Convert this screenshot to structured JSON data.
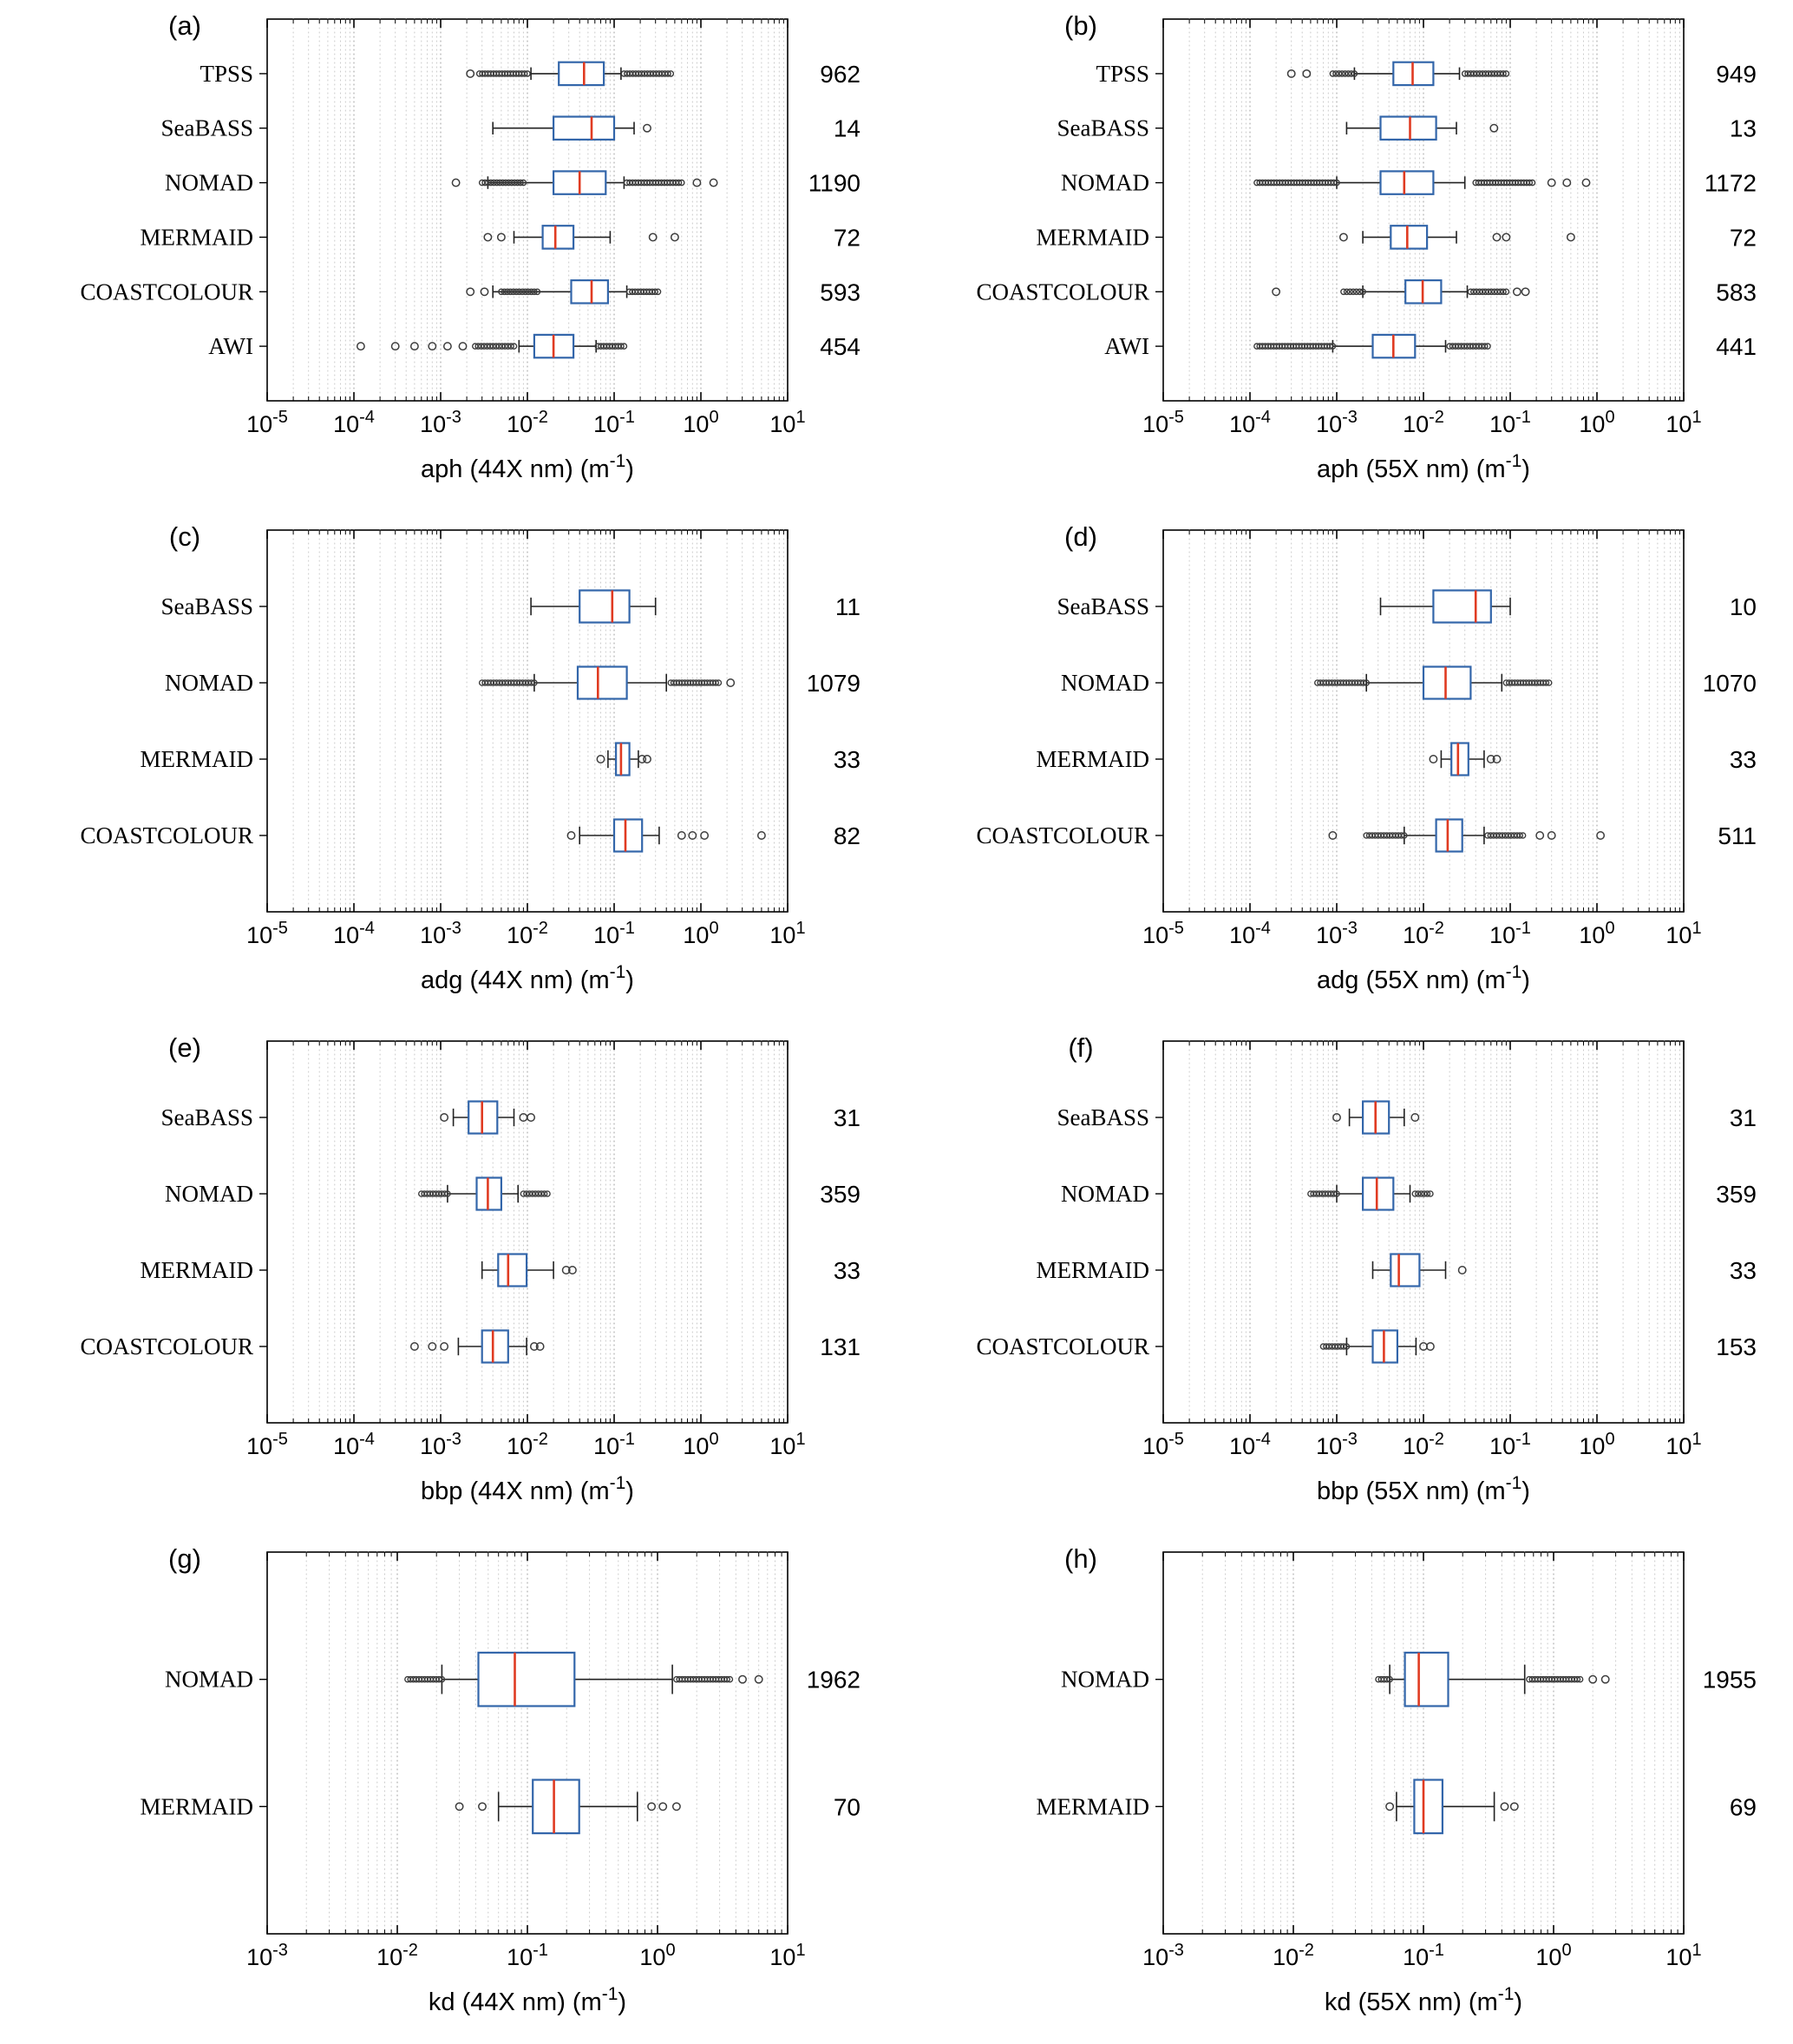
{
  "figure": {
    "grid": "4x2",
    "background": "#ffffff",
    "colors": {
      "box_stroke": "#3366aa",
      "median": "#e03b22",
      "whisker": "#222222",
      "outlier": "#3d3d3d",
      "grid_minor": "#c9c9c9",
      "grid_major": "#9b9b9b",
      "axis": "#000000",
      "text": "#000000"
    }
  },
  "chart_data": [
    {
      "panel": "(a)",
      "type": "boxplot-horizontal",
      "x_scale": "log10",
      "x_min_exp": -5,
      "x_max_exp": 1,
      "xlabel": [
        "aph (44X nm) (m",
        "-1",
        ")"
      ],
      "rows": [
        {
          "label": "TPSS",
          "count": "962",
          "whisker_lo": 0.011,
          "q1": 0.023,
          "median": 0.045,
          "q3": 0.076,
          "whisker_hi": 0.12,
          "dense_outliers": [
            [
              0.0028,
              0.01
            ],
            [
              0.13,
              0.45
            ]
          ],
          "outliers": [
            0.0022
          ]
        },
        {
          "label": "SeaBASS",
          "count": "14",
          "whisker_lo": 0.004,
          "q1": 0.02,
          "median": 0.055,
          "q3": 0.1,
          "whisker_hi": 0.17,
          "dense_outliers": [],
          "outliers": [
            0.24
          ]
        },
        {
          "label": "NOMAD",
          "count": "1190",
          "whisker_lo": 0.0035,
          "q1": 0.02,
          "median": 0.04,
          "q3": 0.08,
          "whisker_hi": 0.13,
          "dense_outliers": [
            [
              0.003,
              0.009
            ],
            [
              0.14,
              0.6
            ]
          ],
          "outliers": [
            0.0015,
            0.9,
            1.4
          ]
        },
        {
          "label": "MERMAID",
          "count": "72",
          "whisker_lo": 0.007,
          "q1": 0.015,
          "median": 0.021,
          "q3": 0.034,
          "whisker_hi": 0.09,
          "dense_outliers": [],
          "outliers": [
            0.0035,
            0.005,
            0.28,
            0.5
          ]
        },
        {
          "label": "COASTCOLOUR",
          "count": "593",
          "whisker_lo": 0.004,
          "q1": 0.032,
          "median": 0.055,
          "q3": 0.085,
          "whisker_hi": 0.14,
          "dense_outliers": [
            [
              0.005,
              0.013
            ],
            [
              0.15,
              0.32
            ]
          ],
          "outliers": [
            0.0022,
            0.0032
          ]
        },
        {
          "label": "AWI",
          "count": "454",
          "whisker_lo": 0.008,
          "q1": 0.012,
          "median": 0.02,
          "q3": 0.034,
          "whisker_hi": 0.062,
          "dense_outliers": [
            [
              0.0025,
              0.007
            ],
            [
              0.065,
              0.13
            ]
          ],
          "outliers": [
            0.00012,
            0.0003,
            0.0005,
            0.0008,
            0.0012,
            0.0018
          ]
        }
      ]
    },
    {
      "panel": "(b)",
      "type": "boxplot-horizontal",
      "x_scale": "log10",
      "x_min_exp": -5,
      "x_max_exp": 1,
      "xlabel": [
        "aph (55X nm) (m",
        "-1",
        ")"
      ],
      "rows": [
        {
          "label": "TPSS",
          "count": "949",
          "whisker_lo": 0.0016,
          "q1": 0.0045,
          "median": 0.0075,
          "q3": 0.013,
          "whisker_hi": 0.026,
          "dense_outliers": [
            [
              0.0009,
              0.0016
            ],
            [
              0.03,
              0.09
            ]
          ],
          "outliers": [
            0.0003,
            0.00045
          ]
        },
        {
          "label": "SeaBASS",
          "count": "13",
          "whisker_lo": 0.0013,
          "q1": 0.0032,
          "median": 0.007,
          "q3": 0.014,
          "whisker_hi": 0.024,
          "dense_outliers": [],
          "outliers": [
            0.065
          ]
        },
        {
          "label": "NOMAD",
          "count": "1172",
          "whisker_lo": 0.001,
          "q1": 0.0032,
          "median": 0.006,
          "q3": 0.013,
          "whisker_hi": 0.03,
          "dense_outliers": [
            [
              0.00012,
              0.001
            ],
            [
              0.04,
              0.18
            ]
          ],
          "outliers": [
            0.3,
            0.45,
            0.75
          ]
        },
        {
          "label": "MERMAID",
          "count": "72",
          "whisker_lo": 0.002,
          "q1": 0.0042,
          "median": 0.0065,
          "q3": 0.011,
          "whisker_hi": 0.024,
          "dense_outliers": [],
          "outliers": [
            0.0012,
            0.07,
            0.09,
            0.5
          ]
        },
        {
          "label": "COASTCOLOUR",
          "count": "583",
          "whisker_lo": 0.002,
          "q1": 0.0062,
          "median": 0.0098,
          "q3": 0.016,
          "whisker_hi": 0.032,
          "dense_outliers": [
            [
              0.0012,
              0.002
            ],
            [
              0.035,
              0.09
            ]
          ],
          "outliers": [
            0.0002,
            0.12,
            0.15
          ]
        },
        {
          "label": "AWI",
          "count": "441",
          "whisker_lo": 0.0009,
          "q1": 0.0026,
          "median": 0.0045,
          "q3": 0.008,
          "whisker_hi": 0.018,
          "dense_outliers": [
            [
              0.00012,
              0.0009
            ],
            [
              0.02,
              0.055
            ]
          ],
          "outliers": []
        }
      ]
    },
    {
      "panel": "(c)",
      "type": "boxplot-horizontal",
      "x_scale": "log10",
      "x_min_exp": -5,
      "x_max_exp": 1,
      "xlabel": [
        "adg (44X nm) (m",
        "-1",
        ")"
      ],
      "rows": [
        {
          "label": "SeaBASS",
          "count": "11",
          "whisker_lo": 0.011,
          "q1": 0.04,
          "median": 0.095,
          "q3": 0.15,
          "whisker_hi": 0.3,
          "dense_outliers": [],
          "outliers": []
        },
        {
          "label": "NOMAD",
          "count": "1079",
          "whisker_lo": 0.012,
          "q1": 0.038,
          "median": 0.065,
          "q3": 0.14,
          "whisker_hi": 0.4,
          "dense_outliers": [
            [
              0.003,
              0.012
            ],
            [
              0.45,
              1.6
            ]
          ],
          "outliers": [
            2.2
          ]
        },
        {
          "label": "MERMAID",
          "count": "33",
          "whisker_lo": 0.085,
          "q1": 0.105,
          "median": 0.12,
          "q3": 0.15,
          "whisker_hi": 0.19,
          "dense_outliers": [],
          "outliers": [
            0.07,
            0.21,
            0.24
          ]
        },
        {
          "label": "COASTCOLOUR",
          "count": "82",
          "whisker_lo": 0.04,
          "q1": 0.1,
          "median": 0.135,
          "q3": 0.21,
          "whisker_hi": 0.33,
          "dense_outliers": [],
          "outliers": [
            0.032,
            0.6,
            0.8,
            1.1,
            5.0
          ]
        }
      ]
    },
    {
      "panel": "(d)",
      "type": "boxplot-horizontal",
      "x_scale": "log10",
      "x_min_exp": -5,
      "x_max_exp": 1,
      "xlabel": [
        "adg (55X nm) (m",
        "-1",
        ")"
      ],
      "rows": [
        {
          "label": "SeaBASS",
          "count": "10",
          "whisker_lo": 0.0032,
          "q1": 0.013,
          "median": 0.04,
          "q3": 0.06,
          "whisker_hi": 0.1,
          "dense_outliers": [],
          "outliers": []
        },
        {
          "label": "NOMAD",
          "count": "1070",
          "whisker_lo": 0.0022,
          "q1": 0.01,
          "median": 0.018,
          "q3": 0.035,
          "whisker_hi": 0.08,
          "dense_outliers": [
            [
              0.0006,
              0.0022
            ],
            [
              0.09,
              0.28
            ]
          ],
          "outliers": []
        },
        {
          "label": "MERMAID",
          "count": "33",
          "whisker_lo": 0.016,
          "q1": 0.021,
          "median": 0.025,
          "q3": 0.033,
          "whisker_hi": 0.05,
          "dense_outliers": [],
          "outliers": [
            0.013,
            0.06,
            0.07
          ]
        },
        {
          "label": "COASTCOLOUR",
          "count": "511",
          "whisker_lo": 0.006,
          "q1": 0.014,
          "median": 0.019,
          "q3": 0.028,
          "whisker_hi": 0.05,
          "dense_outliers": [
            [
              0.0022,
              0.006
            ],
            [
              0.055,
              0.14
            ]
          ],
          "outliers": [
            0.0009,
            0.22,
            0.3,
            1.1
          ]
        }
      ]
    },
    {
      "panel": "(e)",
      "type": "boxplot-horizontal",
      "x_scale": "log10",
      "x_min_exp": -5,
      "x_max_exp": 1,
      "xlabel": [
        "bbp (44X nm) (m",
        "-1",
        ")"
      ],
      "rows": [
        {
          "label": "SeaBASS",
          "count": "31",
          "whisker_lo": 0.0014,
          "q1": 0.0021,
          "median": 0.003,
          "q3": 0.0045,
          "whisker_hi": 0.007,
          "dense_outliers": [],
          "outliers": [
            0.0011,
            0.009,
            0.011
          ]
        },
        {
          "label": "NOMAD",
          "count": "359",
          "whisker_lo": 0.0012,
          "q1": 0.0026,
          "median": 0.0035,
          "q3": 0.005,
          "whisker_hi": 0.0078,
          "dense_outliers": [
            [
              0.0006,
              0.0012
            ],
            [
              0.009,
              0.017
            ]
          ],
          "outliers": []
        },
        {
          "label": "MERMAID",
          "count": "33",
          "whisker_lo": 0.003,
          "q1": 0.0046,
          "median": 0.006,
          "q3": 0.0098,
          "whisker_hi": 0.02,
          "dense_outliers": [],
          "outliers": [
            0.028,
            0.033
          ]
        },
        {
          "label": "COASTCOLOUR",
          "count": "131",
          "whisker_lo": 0.0016,
          "q1": 0.003,
          "median": 0.004,
          "q3": 0.006,
          "whisker_hi": 0.0098,
          "dense_outliers": [],
          "outliers": [
            0.0005,
            0.0008,
            0.0011,
            0.012,
            0.014
          ]
        }
      ]
    },
    {
      "panel": "(f)",
      "type": "boxplot-horizontal",
      "x_scale": "log10",
      "x_min_exp": -5,
      "x_max_exp": 1,
      "xlabel": [
        "bbp (55X nm) (m",
        "-1",
        ")"
      ],
      "rows": [
        {
          "label": "SeaBASS",
          "count": "31",
          "whisker_lo": 0.0014,
          "q1": 0.002,
          "median": 0.0028,
          "q3": 0.004,
          "whisker_hi": 0.006,
          "dense_outliers": [],
          "outliers": [
            0.001,
            0.008
          ]
        },
        {
          "label": "NOMAD",
          "count": "359",
          "whisker_lo": 0.001,
          "q1": 0.002,
          "median": 0.0029,
          "q3": 0.0045,
          "whisker_hi": 0.007,
          "dense_outliers": [
            [
              0.0005,
              0.001
            ],
            [
              0.008,
              0.012
            ]
          ],
          "outliers": []
        },
        {
          "label": "MERMAID",
          "count": "33",
          "whisker_lo": 0.0026,
          "q1": 0.0042,
          "median": 0.0052,
          "q3": 0.009,
          "whisker_hi": 0.018,
          "dense_outliers": [],
          "outliers": [
            0.028
          ]
        },
        {
          "label": "COASTCOLOUR",
          "count": "153",
          "whisker_lo": 0.0013,
          "q1": 0.0026,
          "median": 0.0035,
          "q3": 0.005,
          "whisker_hi": 0.0082,
          "dense_outliers": [
            [
              0.0007,
              0.0013
            ]
          ],
          "outliers": [
            0.01,
            0.012
          ]
        }
      ]
    },
    {
      "panel": "(g)",
      "type": "boxplot-horizontal",
      "x_scale": "log10",
      "x_min_exp": -3,
      "x_max_exp": 1,
      "xlabel": [
        "kd (44X nm) (m",
        "-1",
        ")"
      ],
      "rows": [
        {
          "label": "NOMAD",
          "count": "1962",
          "whisker_lo": 0.022,
          "q1": 0.042,
          "median": 0.08,
          "q3": 0.23,
          "whisker_hi": 1.3,
          "dense_outliers": [
            [
              0.012,
              0.022
            ],
            [
              1.4,
              3.6
            ]
          ],
          "outliers": [
            4.5,
            6.0
          ]
        },
        {
          "label": "MERMAID",
          "count": "70",
          "whisker_lo": 0.06,
          "q1": 0.11,
          "median": 0.16,
          "q3": 0.25,
          "whisker_hi": 0.7,
          "dense_outliers": [],
          "outliers": [
            0.03,
            0.045,
            0.9,
            1.1,
            1.4
          ]
        }
      ]
    },
    {
      "panel": "(h)",
      "type": "boxplot-horizontal",
      "x_scale": "log10",
      "x_min_exp": -3,
      "x_max_exp": 1,
      "xlabel": [
        "kd (55X nm) (m",
        "-1",
        ")"
      ],
      "rows": [
        {
          "label": "NOMAD",
          "count": "1955",
          "whisker_lo": 0.055,
          "q1": 0.072,
          "median": 0.092,
          "q3": 0.155,
          "whisker_hi": 0.6,
          "dense_outliers": [
            [
              0.045,
              0.055
            ],
            [
              0.65,
              1.6
            ]
          ],
          "outliers": [
            2.0,
            2.5
          ]
        },
        {
          "label": "MERMAID",
          "count": "69",
          "whisker_lo": 0.062,
          "q1": 0.085,
          "median": 0.1,
          "q3": 0.14,
          "whisker_hi": 0.35,
          "dense_outliers": [],
          "outliers": [
            0.055,
            0.42,
            0.5
          ]
        }
      ]
    }
  ]
}
